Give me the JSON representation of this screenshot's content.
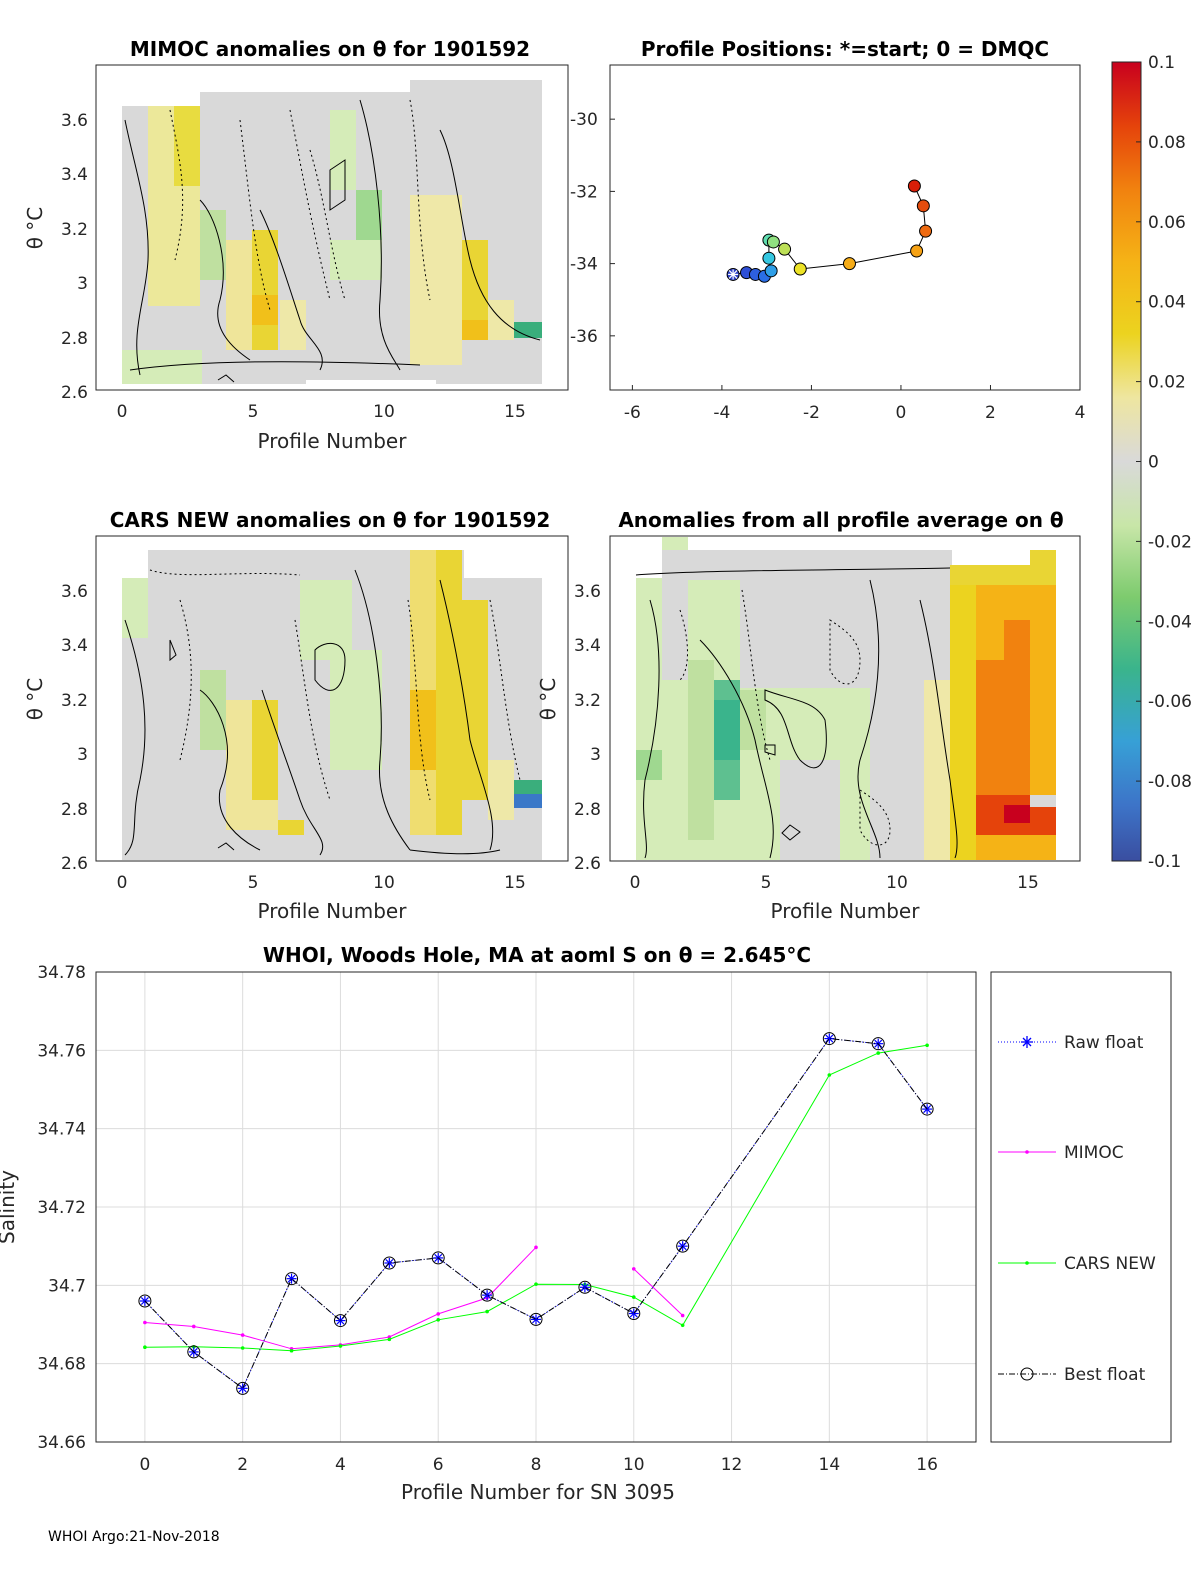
{
  "footer_text": "WHOI Argo:21-Nov-2018",
  "colorbar": {
    "ticks": [
      "0.1",
      "0.08",
      "0.06",
      "0.04",
      "0.02",
      "0",
      "-0.02",
      "-0.04",
      "-0.06",
      "-0.08",
      "-0.1"
    ],
    "range": [
      -0.1,
      0.1
    ]
  },
  "chart_data": [
    {
      "id": "mimoc",
      "type": "heatmap",
      "title": "MIMOC anomalies on θ  for 1901592",
      "xlabel": "Profile Number",
      "ylabel": "θ °C",
      "xticks": [
        "0",
        "5",
        "10",
        "15"
      ],
      "yticks": [
        "3.6",
        "3.4",
        "3.2",
        "3",
        "2.8",
        "2.6"
      ],
      "xlim": [
        -1,
        17
      ],
      "ylim": [
        2.6,
        3.78
      ]
    },
    {
      "id": "positions",
      "type": "scatter",
      "title": "Profile Positions: *=start; 0 = DMQC",
      "xticks": [
        "-6",
        "-4",
        "-2",
        "0",
        "2",
        "4"
      ],
      "yticks": [
        "-30",
        "-32",
        "-34",
        "-36"
      ],
      "xlim": [
        -6.5,
        4
      ],
      "ylim": [
        -37.5,
        -28.5
      ],
      "lon": [
        -3.75,
        -3.45,
        -3.25,
        -3.05,
        -2.9,
        -2.95,
        -2.95,
        -2.85,
        -2.6,
        -2.25,
        -1.15,
        0.35,
        0.55,
        0.5,
        0.3
      ],
      "lat": [
        -34.3,
        -34.25,
        -34.3,
        -34.35,
        -34.2,
        -33.85,
        -33.35,
        -33.4,
        -33.6,
        -34.15,
        -34.0,
        -33.65,
        -33.1,
        -32.4,
        -31.85
      ],
      "point_colors": [
        "#2e43c8",
        "#2e4fd6",
        "#2d5fe0",
        "#2a6ee6",
        "#2f9fe8",
        "#35c7e0",
        "#5fdcb0",
        "#90e080",
        "#bde057",
        "#ece226",
        "#f6ac17",
        "#f6a214",
        "#ee6a10",
        "#e44c0d",
        "#d81e08"
      ]
    },
    {
      "id": "cars",
      "type": "heatmap",
      "title": "CARS NEW anomalies on θ for 1901592",
      "xlabel": "Profile Number",
      "ylabel": "θ °C",
      "xticks": [
        "0",
        "5",
        "10",
        "15"
      ],
      "yticks": [
        "3.6",
        "3.4",
        "3.2",
        "3",
        "2.8",
        "2.6"
      ],
      "xlim": [
        -1,
        17
      ],
      "ylim": [
        2.6,
        3.78
      ]
    },
    {
      "id": "allavg",
      "type": "heatmap",
      "title": "Anomalies from all profile average on θ",
      "xlabel": "Profile Number",
      "ylabel": "θ °C",
      "xticks": [
        "0",
        "5",
        "10",
        "15"
      ],
      "yticks": [
        "3.6",
        "3.4",
        "3.2",
        "3",
        "2.8",
        "2.6"
      ],
      "xlim": [
        -1,
        17
      ],
      "ylim": [
        2.6,
        3.78
      ]
    },
    {
      "id": "salinity",
      "type": "line",
      "title": "WHOI, Woods Hole, MA at aoml S on θ = 2.645°C",
      "xlabel": "Profile Number for SN 3095",
      "ylabel": "Salinity",
      "xlim": [
        -1,
        17
      ],
      "ylim": [
        34.66,
        34.78
      ],
      "xticks": [
        "0",
        "2",
        "4",
        "6",
        "8",
        "10",
        "12",
        "14",
        "16"
      ],
      "yticks": [
        "34.78",
        "34.76",
        "34.74",
        "34.72",
        "34.7",
        "34.68",
        "34.66"
      ],
      "legend": [
        "Raw float",
        "MIMOC",
        "CARS NEW",
        "Best float"
      ],
      "series": [
        {
          "name": "Raw float",
          "color": "#0000ff",
          "x": [
            0,
            1,
            2,
            3,
            4,
            5,
            6,
            7,
            8,
            9,
            10,
            11,
            14,
            15,
            16
          ],
          "values": [
            34.696,
            34.683,
            34.6737,
            34.7017,
            34.691,
            34.7057,
            34.707,
            34.6975,
            34.6913,
            34.6995,
            34.6928,
            34.71,
            34.763,
            34.7617,
            34.745
          ]
        },
        {
          "name": "MIMOC",
          "color": "#ff00ff",
          "segments": [
            {
              "x": [
                0,
                1,
                2,
                3,
                4,
                5,
                6,
                7,
                8
              ],
              "values": [
                34.6905,
                34.6895,
                34.6873,
                34.6838,
                34.6848,
                34.6868,
                34.6927,
                34.6968,
                34.7097
              ]
            },
            {
              "x": [
                10,
                11
              ],
              "values": [
                34.7042,
                34.6923
              ]
            }
          ]
        },
        {
          "name": "CARS NEW",
          "color": "#00ff00",
          "x": [
            0,
            1,
            2,
            3,
            4,
            5,
            6,
            7,
            8,
            9,
            10,
            11,
            14,
            15,
            16
          ],
          "values": [
            34.6842,
            34.6843,
            34.684,
            34.6833,
            34.6845,
            34.6862,
            34.6912,
            34.6933,
            34.7003,
            34.7002,
            34.697,
            34.6898,
            34.7537,
            34.7593,
            34.7613
          ]
        },
        {
          "name": "Best float",
          "color": "#000000",
          "x": [
            0,
            1,
            2,
            3,
            4,
            5,
            6,
            7,
            8,
            9,
            10,
            11,
            14,
            15,
            16
          ],
          "values": [
            34.696,
            34.683,
            34.6737,
            34.7017,
            34.691,
            34.7057,
            34.707,
            34.6975,
            34.6913,
            34.6995,
            34.6928,
            34.71,
            34.763,
            34.7617,
            34.745
          ]
        }
      ]
    }
  ]
}
